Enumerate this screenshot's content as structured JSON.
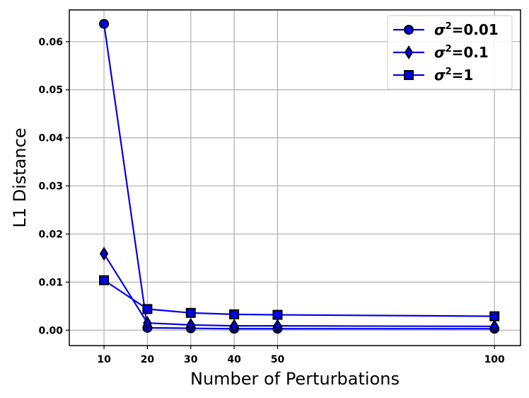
{
  "chart_data": {
    "type": "line",
    "xlabel": "Number of Perturbations",
    "ylabel": "L1 Distance",
    "x": [
      10,
      20,
      30,
      40,
      50,
      100
    ],
    "xticks": [
      "10",
      "20",
      "30",
      "40",
      "50",
      "100"
    ],
    "xlim": [
      2,
      106
    ],
    "ylim": [
      -0.0032,
      0.0666
    ],
    "yticks": [
      "0.00",
      "0.01",
      "0.02",
      "0.03",
      "0.04",
      "0.05",
      "0.06"
    ],
    "grid": true,
    "legend_position": "top-right",
    "line_color": "#0000ee",
    "series": [
      {
        "name": "σ",
        "name_sup": "2",
        "name_suffix": "=0.01",
        "marker": "circle",
        "values": [
          0.0637,
          0.0005,
          0.0004,
          0.0003,
          0.0003,
          0.0003
        ]
      },
      {
        "name": "σ",
        "name_sup": "2",
        "name_suffix": "=0.1",
        "marker": "diamond",
        "values": [
          0.0159,
          0.0015,
          0.0011,
          0.0009,
          0.0009,
          0.0008
        ]
      },
      {
        "name": "σ",
        "name_sup": "2",
        "name_suffix": "=1",
        "marker": "square",
        "values": [
          0.0104,
          0.0044,
          0.0036,
          0.0033,
          0.0032,
          0.0029
        ]
      }
    ]
  }
}
